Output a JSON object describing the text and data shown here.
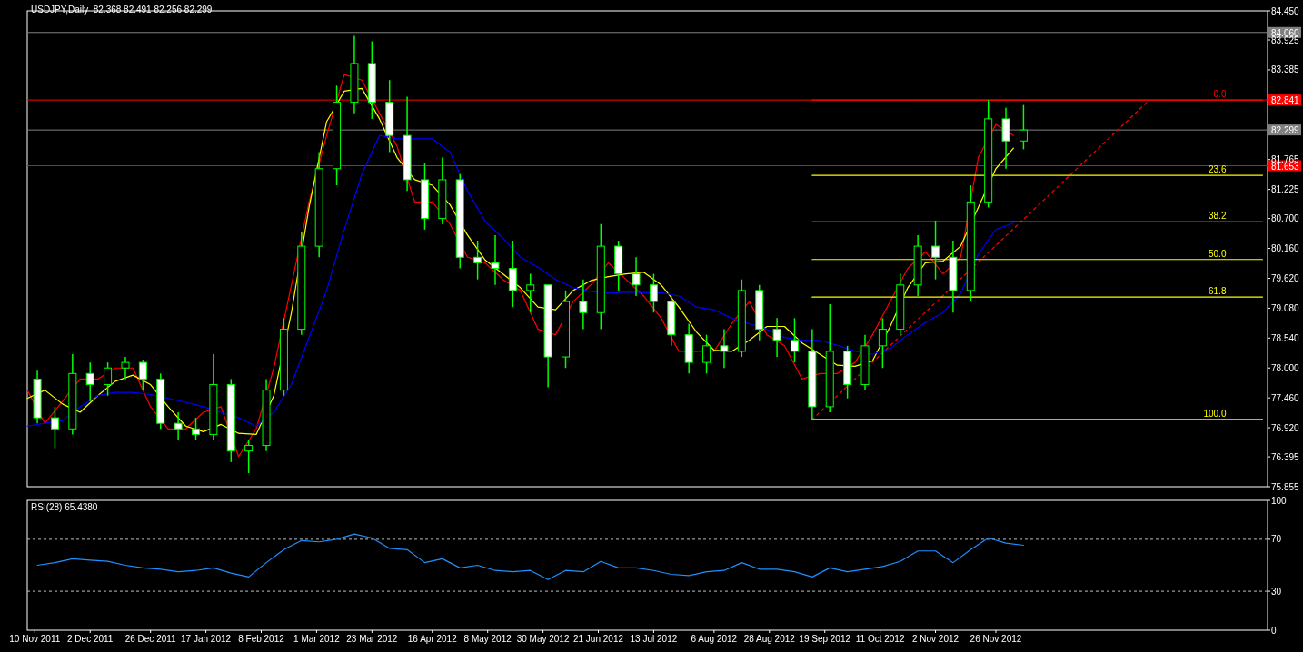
{
  "chart_data": [
    {
      "type": "candlestick",
      "title": "USDJPY,Daily  82.368 82.491 82.256 82.299",
      "color": "#00ff00",
      "x": [
        "2011-11-11",
        "2011-11-18",
        "2011-11-25",
        "2011-12-02",
        "2011-12-09",
        "2011-12-16",
        "2011-12-23",
        "2011-12-30",
        "2012-01-06",
        "2012-01-13",
        "2012-01-20",
        "2012-01-27",
        "2012-02-03",
        "2012-02-10",
        "2012-02-17",
        "2012-02-24",
        "2012-03-02",
        "2012-03-09",
        "2012-03-16",
        "2012-03-23",
        "2012-03-30",
        "2012-04-06",
        "2012-04-13",
        "2012-04-20",
        "2012-04-27",
        "2012-05-04",
        "2012-05-11",
        "2012-05-18",
        "2012-05-25",
        "2012-06-01",
        "2012-06-08",
        "2012-06-15",
        "2012-06-22",
        "2012-06-29",
        "2012-07-06",
        "2012-07-13",
        "2012-07-20",
        "2012-07-27",
        "2012-08-03",
        "2012-08-10",
        "2012-08-17",
        "2012-08-24",
        "2012-08-31",
        "2012-09-07",
        "2012-09-14",
        "2012-09-21",
        "2012-09-28",
        "2012-10-05",
        "2012-10-12",
        "2012-10-19",
        "2012-10-26",
        "2012-11-02",
        "2012-11-09",
        "2012-11-16",
        "2012-11-23",
        "2012-11-30",
        "2012-12-07"
      ],
      "ohlc": [
        [
          77.8,
          77.95,
          77.0,
          77.1
        ],
        [
          77.1,
          77.3,
          76.55,
          76.9
        ],
        [
          76.9,
          78.25,
          76.8,
          77.9
        ],
        [
          77.9,
          78.1,
          77.4,
          77.7
        ],
        [
          77.7,
          78.1,
          77.5,
          78.0
        ],
        [
          78.0,
          78.2,
          77.8,
          78.1
        ],
        [
          78.1,
          78.15,
          77.6,
          77.8
        ],
        [
          77.8,
          77.9,
          76.9,
          77.0
        ],
        [
          77.0,
          77.2,
          76.7,
          76.9
        ],
        [
          76.9,
          77.1,
          76.7,
          76.8
        ],
        [
          76.8,
          78.25,
          76.7,
          77.7
        ],
        [
          77.7,
          77.8,
          76.3,
          76.5
        ],
        [
          76.5,
          76.7,
          76.1,
          76.6
        ],
        [
          76.6,
          77.8,
          76.5,
          77.6
        ],
        [
          77.6,
          78.9,
          77.5,
          78.7
        ],
        [
          78.7,
          80.45,
          78.6,
          80.2
        ],
        [
          80.2,
          81.9,
          80.0,
          81.6
        ],
        [
          81.6,
          83.1,
          81.3,
          82.8
        ],
        [
          82.8,
          84.0,
          82.6,
          83.5
        ],
        [
          83.5,
          83.9,
          82.5,
          82.8
        ],
        [
          82.8,
          83.2,
          81.9,
          82.2
        ],
        [
          82.2,
          82.9,
          81.2,
          81.4
        ],
        [
          81.4,
          81.7,
          80.5,
          80.7
        ],
        [
          80.7,
          81.8,
          80.6,
          81.4
        ],
        [
          81.4,
          81.5,
          79.8,
          80.0
        ],
        [
          80.0,
          80.3,
          79.6,
          79.9
        ],
        [
          79.9,
          80.4,
          79.5,
          79.8
        ],
        [
          79.8,
          80.3,
          79.1,
          79.4
        ],
        [
          79.4,
          79.7,
          79.0,
          79.5
        ],
        [
          79.5,
          79.5,
          77.65,
          78.2
        ],
        [
          78.2,
          79.4,
          78.0,
          79.2
        ],
        [
          79.2,
          79.6,
          78.7,
          79.0
        ],
        [
          79.0,
          80.6,
          78.7,
          80.2
        ],
        [
          80.2,
          80.3,
          79.4,
          79.7
        ],
        [
          79.7,
          80.0,
          79.3,
          79.5
        ],
        [
          79.5,
          79.7,
          79.0,
          79.2
        ],
        [
          79.2,
          79.3,
          78.4,
          78.6
        ],
        [
          78.6,
          78.8,
          77.9,
          78.1
        ],
        [
          78.1,
          78.6,
          77.9,
          78.4
        ],
        [
          78.4,
          78.7,
          78.0,
          78.3
        ],
        [
          78.3,
          79.6,
          78.2,
          79.4
        ],
        [
          79.4,
          79.5,
          78.5,
          78.7
        ],
        [
          78.7,
          78.9,
          78.2,
          78.5
        ],
        [
          78.5,
          78.9,
          78.1,
          78.3
        ],
        [
          78.3,
          78.7,
          77.07,
          77.3
        ],
        [
          77.3,
          79.15,
          77.2,
          78.3
        ],
        [
          78.3,
          78.4,
          77.45,
          77.7
        ],
        [
          77.7,
          78.6,
          77.6,
          78.4
        ],
        [
          78.4,
          78.9,
          78.0,
          78.7
        ],
        [
          78.7,
          79.7,
          78.6,
          79.5
        ],
        [
          79.5,
          80.4,
          79.3,
          80.2
        ],
        [
          80.2,
          80.66,
          79.6,
          80.0
        ],
        [
          80.0,
          80.3,
          79.0,
          79.4
        ],
        [
          79.4,
          81.3,
          79.2,
          81.0
        ],
        [
          81.0,
          82.84,
          80.9,
          82.5
        ],
        [
          82.5,
          82.7,
          81.6,
          82.1
        ],
        [
          82.1,
          82.75,
          81.95,
          82.299
        ]
      ],
      "series": [
        {
          "type": "line",
          "color": "#ff0000",
          "x": [
            "2011-11-07",
            "2011-11-14",
            "2011-11-21",
            "2011-11-28",
            "2011-12-05",
            "2011-12-12",
            "2011-12-19",
            "2011-12-26",
            "2012-01-02",
            "2012-01-09",
            "2012-01-16",
            "2012-01-23",
            "2012-01-30",
            "2012-02-06",
            "2012-02-13",
            "2012-02-20",
            "2012-02-27",
            "2012-03-05",
            "2012-03-12",
            "2012-03-19",
            "2012-03-26",
            "2012-04-02",
            "2012-04-09",
            "2012-04-16",
            "2012-04-23",
            "2012-04-30",
            "2012-05-07",
            "2012-05-14",
            "2012-05-21",
            "2012-05-28",
            "2012-06-04",
            "2012-06-11",
            "2012-06-18",
            "2012-06-25",
            "2012-07-02",
            "2012-07-09",
            "2012-07-16",
            "2012-07-23",
            "2012-07-30",
            "2012-08-06",
            "2012-08-13",
            "2012-08-20",
            "2012-08-27",
            "2012-09-03",
            "2012-09-10",
            "2012-09-17",
            "2012-09-24",
            "2012-10-01",
            "2012-10-08",
            "2012-10-15",
            "2012-10-22",
            "2012-10-29",
            "2012-11-05",
            "2012-11-12",
            "2012-11-19",
            "2012-11-26",
            "2012-12-03"
          ],
          "values": [
            77.6,
            77.0,
            77.4,
            77.8,
            77.8,
            78.0,
            78.0,
            77.3,
            76.9,
            76.9,
            77.2,
            77.3,
            76.4,
            76.9,
            78.0,
            79.5,
            81.0,
            82.2,
            83.3,
            83.2,
            82.6,
            82.0,
            81.0,
            81.0,
            80.6,
            80.0,
            79.9,
            79.6,
            79.4,
            78.7,
            78.6,
            79.2,
            79.5,
            79.9,
            79.6,
            79.3,
            78.9,
            78.3,
            78.3,
            78.3,
            78.8,
            79.2,
            78.6,
            78.4,
            77.8,
            77.9,
            77.9,
            78.1,
            78.6,
            79.2,
            79.8,
            80.1,
            79.7,
            80.0,
            81.8,
            82.4,
            82.2
          ]
        },
        {
          "type": "line",
          "color": "#ffff00",
          "x": [
            "2011-11-07",
            "2011-11-14",
            "2011-11-21",
            "2011-11-28",
            "2011-12-05",
            "2011-12-12",
            "2011-12-19",
            "2011-12-26",
            "2012-01-02",
            "2012-01-09",
            "2012-01-16",
            "2012-01-23",
            "2012-01-30",
            "2012-02-06",
            "2012-02-13",
            "2012-02-20",
            "2012-02-27",
            "2012-03-05",
            "2012-03-12",
            "2012-03-19",
            "2012-03-26",
            "2012-04-02",
            "2012-04-09",
            "2012-04-16",
            "2012-04-23",
            "2012-04-30",
            "2012-05-07",
            "2012-05-14",
            "2012-05-21",
            "2012-05-28",
            "2012-06-04",
            "2012-06-11",
            "2012-06-18",
            "2012-06-25",
            "2012-07-02",
            "2012-07-09",
            "2012-07-16",
            "2012-07-23",
            "2012-07-30",
            "2012-08-06",
            "2012-08-13",
            "2012-08-20",
            "2012-08-27",
            "2012-09-03",
            "2012-09-10",
            "2012-09-17",
            "2012-09-24",
            "2012-10-01",
            "2012-10-08",
            "2012-10-15",
            "2012-10-22",
            "2012-10-29",
            "2012-11-05",
            "2012-11-12",
            "2012-11-19",
            "2012-11-26",
            "2012-12-03"
          ],
          "values": [
            77.45,
            77.6,
            77.35,
            77.2,
            77.5,
            77.76,
            77.87,
            77.7,
            77.3,
            76.95,
            76.85,
            76.98,
            76.82,
            76.8,
            77.5,
            79.0,
            80.9,
            82.45,
            83.0,
            83.05,
            82.5,
            81.8,
            81.4,
            81.3,
            80.95,
            80.4,
            79.95,
            79.7,
            79.45,
            79.1,
            79.05,
            79.4,
            79.58,
            79.65,
            79.7,
            79.73,
            79.5,
            79.1,
            78.65,
            78.32,
            78.3,
            78.5,
            78.75,
            78.75,
            78.45,
            78.25,
            78.05,
            78.03,
            78.13,
            78.75,
            79.45,
            79.9,
            79.93,
            80.2,
            80.9,
            81.6,
            81.97
          ]
        },
        {
          "type": "line",
          "color": "#0000ff",
          "x": [
            "2011-11-07",
            "2011-11-14",
            "2011-11-21",
            "2011-11-28",
            "2011-12-05",
            "2011-12-12",
            "2011-12-19",
            "2011-12-26",
            "2012-01-02",
            "2012-01-09",
            "2012-01-16",
            "2012-01-23",
            "2012-01-30",
            "2012-02-06",
            "2012-02-13",
            "2012-02-20",
            "2012-02-27",
            "2012-03-05",
            "2012-03-12",
            "2012-03-19",
            "2012-03-26",
            "2012-04-02",
            "2012-04-09",
            "2012-04-16",
            "2012-04-23",
            "2012-04-30",
            "2012-05-07",
            "2012-05-14",
            "2012-05-21",
            "2012-05-28",
            "2012-06-04",
            "2012-06-11",
            "2012-06-18",
            "2012-06-25",
            "2012-07-02",
            "2012-07-09",
            "2012-07-16",
            "2012-07-23",
            "2012-07-30",
            "2012-08-06",
            "2012-08-13",
            "2012-08-20",
            "2012-08-27",
            "2012-09-03",
            "2012-09-10",
            "2012-09-17",
            "2012-09-24",
            "2012-10-01",
            "2012-10-08",
            "2012-10-15",
            "2012-10-22",
            "2012-10-29",
            "2012-11-05",
            "2012-11-12",
            "2012-11-19",
            "2012-11-26",
            "2012-12-03"
          ],
          "values": [
            76.95,
            77.0,
            77.05,
            77.3,
            77.5,
            77.56,
            77.56,
            77.52,
            77.45,
            77.38,
            77.3,
            77.2,
            77.1,
            76.95,
            77.2,
            77.7,
            78.55,
            79.4,
            80.5,
            81.5,
            82.2,
            82.14,
            82.14,
            82.14,
            81.9,
            81.2,
            80.65,
            80.35,
            80.0,
            79.82,
            79.6,
            79.45,
            79.38,
            79.35,
            79.37,
            79.36,
            79.36,
            79.3,
            79.1,
            79.05,
            78.9,
            78.8,
            78.7,
            78.55,
            78.5,
            78.5,
            78.41,
            78.3,
            78.25,
            78.35,
            78.6,
            78.82,
            79.0,
            79.35,
            80.05,
            80.5,
            80.62
          ]
        },
        {
          "type": "line",
          "color": "#ff0000",
          "line_style": "dashed",
          "x": [
            "2012-09-14",
            "2013-01-26"
          ],
          "values": [
            77.07,
            82.84
          ]
        },
        {
          "type": "line",
          "color": "#ff0000",
          "name": "0.0",
          "x": [
            "2012-09-14",
            "2013-03-12"
          ],
          "values": [
            82.84,
            82.84
          ]
        },
        {
          "type": "line",
          "color": "#ffff00",
          "name": "23.6",
          "x": [
            "2012-09-14",
            "2013-03-12"
          ],
          "values": [
            81.48,
            81.48
          ]
        },
        {
          "type": "line",
          "color": "#ffff00",
          "name": "38.2",
          "x": [
            "2012-09-14",
            "2013-03-12"
          ],
          "values": [
            80.64,
            80.64
          ]
        },
        {
          "type": "line",
          "color": "#ffff00",
          "name": "50.0",
          "x": [
            "2012-09-14",
            "2013-03-12"
          ],
          "values": [
            79.96,
            79.96
          ]
        },
        {
          "type": "line",
          "color": "#ffff00",
          "name": "61.8",
          "x": [
            "2012-09-14",
            "2013-03-12"
          ],
          "values": [
            79.28,
            79.28
          ]
        },
        {
          "type": "line",
          "color": "#ffff00",
          "name": "100.0",
          "x": [
            "2012-09-14",
            "2013-03-12"
          ],
          "values": [
            77.07,
            77.07
          ]
        }
      ],
      "ref_lines": [
        {
          "axis": "y",
          "value": 84.06,
          "label": "84.060",
          "color": "#808080"
        },
        {
          "axis": "y",
          "value": 82.841,
          "label": "82.841",
          "color": "#ff0000"
        },
        {
          "axis": "y",
          "value": 82.299,
          "label": "82.299",
          "color": "#808080"
        },
        {
          "axis": "y",
          "value": 81.653,
          "label": "81.653",
          "color": "#ff0000"
        }
      ],
      "xlim": [
        "2011-11-07",
        "2013-03-14"
      ],
      "ylim": [
        75.855,
        84.45
      ],
      "yticks": [
        75.855,
        76.395,
        {
          "value": 76.92,
          "label": "76.920"
        },
        {
          "value": 77.46,
          "label": "77.460"
        },
        {
          "value": 78.0,
          "label": "78.000"
        },
        {
          "value": 78.54,
          "label": "78.540"
        },
        {
          "value": 79.08,
          "label": "79.080"
        },
        {
          "value": 79.62,
          "label": "79.620"
        },
        {
          "value": 80.16,
          "label": "80.160"
        },
        {
          "value": 80.7,
          "label": "80.700"
        },
        81.225,
        81.765,
        83.385,
        83.925,
        {
          "value": 84.45,
          "label": "84.450"
        }
      ],
      "tick_labels": "y"
    },
    {
      "type": "line",
      "title": "RSI(28) 65.4380",
      "x": [
        "2011-11-11",
        "2011-11-18",
        "2011-11-25",
        "2011-12-02",
        "2011-12-09",
        "2011-12-16",
        "2011-12-23",
        "2011-12-30",
        "2012-01-06",
        "2012-01-13",
        "2012-01-20",
        "2012-01-27",
        "2012-02-03",
        "2012-02-10",
        "2012-02-17",
        "2012-02-24",
        "2012-03-02",
        "2012-03-09",
        "2012-03-16",
        "2012-03-23",
        "2012-03-30",
        "2012-04-06",
        "2012-04-13",
        "2012-04-20",
        "2012-04-27",
        "2012-05-04",
        "2012-05-11",
        "2012-05-18",
        "2012-05-25",
        "2012-06-01",
        "2012-06-08",
        "2012-06-15",
        "2012-06-22",
        "2012-06-29",
        "2012-07-06",
        "2012-07-13",
        "2012-07-20",
        "2012-07-27",
        "2012-08-03",
        "2012-08-10",
        "2012-08-17",
        "2012-08-24",
        "2012-08-31",
        "2012-09-07",
        "2012-09-14",
        "2012-09-21",
        "2012-09-28",
        "2012-10-05",
        "2012-10-12",
        "2012-10-19",
        "2012-10-26",
        "2012-11-02",
        "2012-11-09",
        "2012-11-16",
        "2012-11-23",
        "2012-11-30",
        "2012-12-07"
      ],
      "series": [
        {
          "color": "#1e90ff",
          "values": [
            50,
            52,
            55,
            54,
            53,
            50,
            48,
            47,
            45,
            46,
            48,
            44,
            41,
            52,
            62,
            69,
            68,
            70,
            74,
            71,
            63,
            62,
            52,
            55,
            48,
            50,
            46,
            45,
            46,
            39,
            46,
            45,
            53,
            48,
            48,
            46,
            43,
            42,
            45,
            46,
            52,
            47,
            47,
            45,
            41,
            48,
            45,
            47,
            49,
            53,
            61,
            61,
            52,
            62,
            71,
            67,
            65.4
          ]
        }
      ],
      "ref_lines": [
        {
          "axis": "y",
          "value": 70,
          "color": "#c0c0c0",
          "line_style": "dashed"
        },
        {
          "axis": "y",
          "value": 30,
          "color": "#c0c0c0",
          "line_style": "dashed"
        }
      ],
      "xlim": [
        "2011-11-07",
        "2013-03-14"
      ],
      "ylim": [
        0,
        100
      ],
      "yticks": [
        0,
        30,
        70,
        100
      ],
      "xticks": [
        {
          "value": "2011-11-10",
          "label": "10 Nov 2011"
        },
        {
          "value": "2011-12-02",
          "label": "2 Dec 2011"
        },
        {
          "value": "2011-12-26",
          "label": "26 Dec 2011"
        },
        {
          "value": "2012-01-17",
          "label": "17 Jan 2012"
        },
        {
          "value": "2012-02-08",
          "label": "8 Feb 2012"
        },
        {
          "value": "2012-03-01",
          "label": "1 Mar 2012"
        },
        {
          "value": "2012-03-23",
          "label": "23 Mar 2012"
        },
        {
          "value": "2012-04-16",
          "label": "16 Apr 2012"
        },
        {
          "value": "2012-05-08",
          "label": "8 May 2012"
        },
        {
          "value": "2012-05-30",
          "label": "30 May 2012"
        },
        {
          "value": "2012-06-21",
          "label": "21 Jun 2012"
        },
        {
          "value": "2012-07-13",
          "label": "13 Jul 2012"
        },
        {
          "value": "2012-08-06",
          "label": "6 Aug 2012"
        },
        {
          "value": "2012-08-28",
          "label": "28 Aug 2012"
        },
        {
          "value": "2012-09-19",
          "label": "19 Sep 2012"
        },
        {
          "value": "2012-10-11",
          "label": "11 Oct 2012"
        },
        {
          "value": "2012-11-02",
          "label": "2 Nov 2012"
        },
        {
          "value": "2012-11-26",
          "label": "26 Nov 2012"
        }
      ]
    }
  ]
}
